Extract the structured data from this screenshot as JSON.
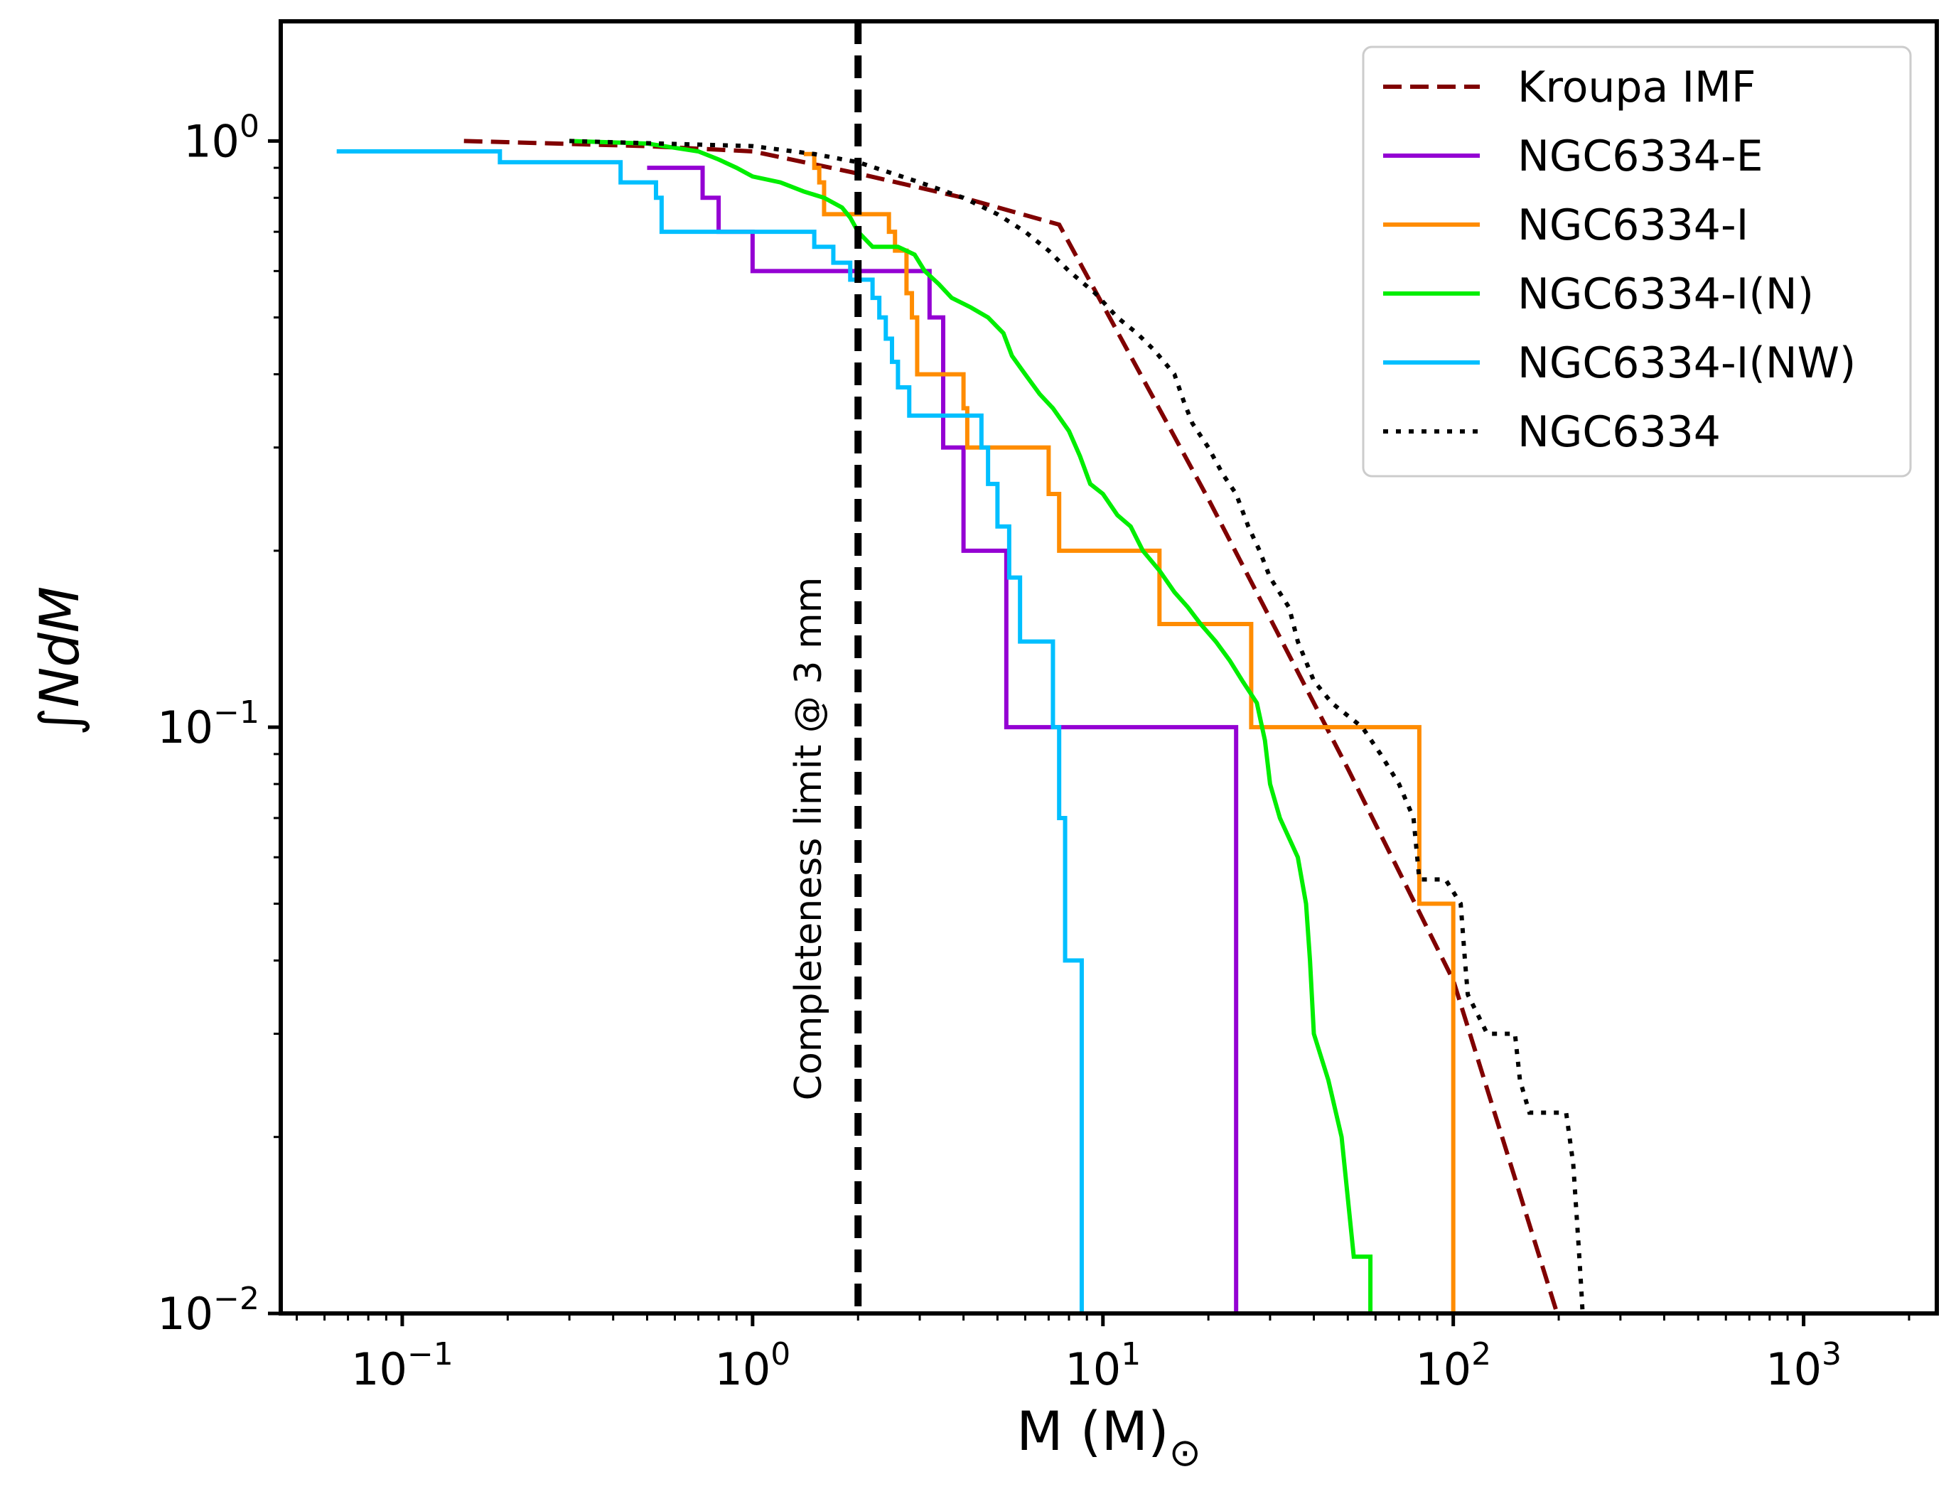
{
  "chart_data": {
    "type": "line",
    "title": "",
    "xlabel": "M (M)",
    "xlabel_subscript": "⊙",
    "ylabel": "∫NdM",
    "xscale": "log",
    "yscale": "log",
    "xlim": [
      0.045,
      2400
    ],
    "ylim": [
      0.01,
      1.6
    ],
    "x_ticks": [
      {
        "value": 0.1,
        "base": "10",
        "exp": "−1"
      },
      {
        "value": 1,
        "base": "10",
        "exp": "0"
      },
      {
        "value": 10,
        "base": "10",
        "exp": "1"
      },
      {
        "value": 100,
        "base": "10",
        "exp": "2"
      },
      {
        "value": 1000,
        "base": "10",
        "exp": "3"
      }
    ],
    "y_ticks": [
      {
        "value": 1,
        "base": "10",
        "exp": "0"
      },
      {
        "value": 0.1,
        "base": "10",
        "exp": "−1"
      },
      {
        "value": 0.01,
        "base": "10",
        "exp": "−2"
      }
    ],
    "grid": false,
    "legend_position": "top-right",
    "completeness_line": {
      "x": 2.0,
      "label": "Completeness limit @ 3 mm",
      "color": "#000000"
    },
    "series": [
      {
        "name": "Kroupa IMF",
        "color": "#800000",
        "style": "dashed",
        "step": false,
        "points": [
          [
            0.15,
            1.0
          ],
          [
            0.5,
            0.98
          ],
          [
            1.0,
            0.96
          ],
          [
            2.0,
            0.88
          ],
          [
            4.0,
            0.8
          ],
          [
            7.5,
            0.72
          ],
          [
            20.0,
            0.245
          ],
          [
            50.0,
            0.085
          ],
          [
            100.0,
            0.037
          ],
          [
            200.0,
            0.0098
          ]
        ]
      },
      {
        "name": "NGC6334-E",
        "color": "#9400d3",
        "style": "solid",
        "step": true,
        "points": [
          [
            0.5,
            0.9
          ],
          [
            0.72,
            0.9
          ],
          [
            0.72,
            0.8
          ],
          [
            0.8,
            0.8
          ],
          [
            0.8,
            0.7
          ],
          [
            1.0,
            0.7
          ],
          [
            1.0,
            0.6
          ],
          [
            3.2,
            0.6
          ],
          [
            3.2,
            0.5
          ],
          [
            3.5,
            0.5
          ],
          [
            3.5,
            0.4
          ],
          [
            3.5,
            0.3
          ],
          [
            4.0,
            0.3
          ],
          [
            4.0,
            0.2
          ],
          [
            5.3,
            0.2
          ],
          [
            5.3,
            0.1
          ],
          [
            24.0,
            0.1
          ],
          [
            24.0,
            0.01
          ]
        ]
      },
      {
        "name": "NGC6334-I",
        "color": "#ff8c00",
        "style": "solid",
        "step": true,
        "points": [
          [
            1.4,
            0.95
          ],
          [
            1.5,
            0.95
          ],
          [
            1.5,
            0.9
          ],
          [
            1.55,
            0.9
          ],
          [
            1.55,
            0.85
          ],
          [
            1.6,
            0.85
          ],
          [
            1.6,
            0.75
          ],
          [
            2.45,
            0.75
          ],
          [
            2.45,
            0.7
          ],
          [
            2.55,
            0.7
          ],
          [
            2.55,
            0.65
          ],
          [
            2.75,
            0.65
          ],
          [
            2.75,
            0.55
          ],
          [
            2.85,
            0.55
          ],
          [
            2.85,
            0.5
          ],
          [
            2.95,
            0.5
          ],
          [
            2.95,
            0.4
          ],
          [
            4.0,
            0.4
          ],
          [
            4.0,
            0.35
          ],
          [
            4.1,
            0.35
          ],
          [
            4.1,
            0.3
          ],
          [
            7.0,
            0.3
          ],
          [
            7.0,
            0.25
          ],
          [
            7.5,
            0.25
          ],
          [
            7.5,
            0.2
          ],
          [
            14.5,
            0.2
          ],
          [
            14.5,
            0.15
          ],
          [
            26.5,
            0.15
          ],
          [
            26.5,
            0.1
          ],
          [
            80.0,
            0.1
          ],
          [
            80.0,
            0.05
          ],
          [
            100.0,
            0.05
          ],
          [
            100.0,
            0.01
          ]
        ]
      },
      {
        "name": "NGC6334-I(N)",
        "color": "#00ee00",
        "style": "solid",
        "step": true,
        "points": [
          [
            0.3,
            1.0
          ],
          [
            0.5,
            0.99
          ],
          [
            0.7,
            0.96
          ],
          [
            0.8,
            0.93
          ],
          [
            0.9,
            0.9
          ],
          [
            1.0,
            0.87
          ],
          [
            1.2,
            0.85
          ],
          [
            1.4,
            0.82
          ],
          [
            1.6,
            0.8
          ],
          [
            1.8,
            0.77
          ],
          [
            1.9,
            0.74
          ],
          [
            2.0,
            0.7
          ],
          [
            2.2,
            0.66
          ],
          [
            2.6,
            0.66
          ],
          [
            2.9,
            0.64
          ],
          [
            3.1,
            0.6
          ],
          [
            3.4,
            0.57
          ],
          [
            3.7,
            0.54
          ],
          [
            4.2,
            0.52
          ],
          [
            4.7,
            0.5
          ],
          [
            5.2,
            0.47
          ],
          [
            5.5,
            0.43
          ],
          [
            6.0,
            0.4
          ],
          [
            6.6,
            0.37
          ],
          [
            7.2,
            0.35
          ],
          [
            8.0,
            0.32
          ],
          [
            8.6,
            0.29
          ],
          [
            9.2,
            0.26
          ],
          [
            10.0,
            0.25
          ],
          [
            11.0,
            0.23
          ],
          [
            12.0,
            0.22
          ],
          [
            13.0,
            0.2
          ],
          [
            14.5,
            0.185
          ],
          [
            16.0,
            0.17
          ],
          [
            17.5,
            0.16
          ],
          [
            19.0,
            0.15
          ],
          [
            21.0,
            0.14
          ],
          [
            23.0,
            0.13
          ],
          [
            25.0,
            0.12
          ],
          [
            27.5,
            0.11
          ],
          [
            29.0,
            0.095
          ],
          [
            30.0,
            0.08
          ],
          [
            32.0,
            0.07
          ],
          [
            36.0,
            0.06
          ],
          [
            38.0,
            0.05
          ],
          [
            39.0,
            0.04
          ],
          [
            40.0,
            0.03
          ],
          [
            44.0,
            0.025
          ],
          [
            48.0,
            0.02
          ],
          [
            52.0,
            0.0125
          ],
          [
            58.0,
            0.0125
          ],
          [
            58.0,
            0.01
          ]
        ]
      },
      {
        "name": "NGC6334-I(NW)",
        "color": "#00bfff",
        "style": "solid",
        "step": true,
        "points": [
          [
            0.065,
            0.96
          ],
          [
            0.19,
            0.96
          ],
          [
            0.19,
            0.92
          ],
          [
            0.42,
            0.92
          ],
          [
            0.42,
            0.85
          ],
          [
            0.53,
            0.85
          ],
          [
            0.53,
            0.8
          ],
          [
            0.55,
            0.8
          ],
          [
            0.55,
            0.7
          ],
          [
            1.0,
            0.7
          ],
          [
            1.0,
            0.7
          ],
          [
            1.5,
            0.7
          ],
          [
            1.5,
            0.66
          ],
          [
            1.7,
            0.66
          ],
          [
            1.7,
            0.62
          ],
          [
            1.9,
            0.62
          ],
          [
            1.9,
            0.58
          ],
          [
            2.2,
            0.58
          ],
          [
            2.2,
            0.54
          ],
          [
            2.3,
            0.54
          ],
          [
            2.3,
            0.5
          ],
          [
            2.4,
            0.5
          ],
          [
            2.4,
            0.46
          ],
          [
            2.5,
            0.46
          ],
          [
            2.5,
            0.42
          ],
          [
            2.6,
            0.42
          ],
          [
            2.6,
            0.38
          ],
          [
            2.8,
            0.38
          ],
          [
            2.8,
            0.34
          ],
          [
            4.5,
            0.34
          ],
          [
            4.5,
            0.3
          ],
          [
            4.7,
            0.3
          ],
          [
            4.7,
            0.26
          ],
          [
            5.0,
            0.26
          ],
          [
            5.0,
            0.22
          ],
          [
            5.4,
            0.22
          ],
          [
            5.4,
            0.18
          ],
          [
            5.8,
            0.18
          ],
          [
            5.8,
            0.14
          ],
          [
            7.2,
            0.14
          ],
          [
            7.2,
            0.1
          ],
          [
            7.5,
            0.1
          ],
          [
            7.5,
            0.07
          ],
          [
            7.8,
            0.07
          ],
          [
            7.8,
            0.04
          ],
          [
            8.7,
            0.04
          ],
          [
            8.7,
            0.01
          ]
        ]
      },
      {
        "name": "NGC6334",
        "color": "#000000",
        "style": "dotted",
        "step": true,
        "points": [
          [
            0.3,
            1.0
          ],
          [
            1.0,
            0.98
          ],
          [
            1.5,
            0.95
          ],
          [
            2.0,
            0.92
          ],
          [
            3.0,
            0.85
          ],
          [
            4.0,
            0.8
          ],
          [
            5.0,
            0.75
          ],
          [
            6.0,
            0.7
          ],
          [
            7.0,
            0.65
          ],
          [
            8.0,
            0.6
          ],
          [
            9.5,
            0.55
          ],
          [
            11.0,
            0.5
          ],
          [
            12.5,
            0.47
          ],
          [
            14.0,
            0.44
          ],
          [
            16.0,
            0.4
          ],
          [
            17.0,
            0.36
          ],
          [
            18.0,
            0.33
          ],
          [
            20.0,
            0.3
          ],
          [
            22.0,
            0.27
          ],
          [
            24.0,
            0.25
          ],
          [
            26.0,
            0.22
          ],
          [
            28.0,
            0.2
          ],
          [
            30.0,
            0.18
          ],
          [
            34.0,
            0.16
          ],
          [
            36.0,
            0.14
          ],
          [
            40.0,
            0.12
          ],
          [
            45.0,
            0.11
          ],
          [
            55.0,
            0.1
          ],
          [
            62.0,
            0.09
          ],
          [
            70.0,
            0.08
          ],
          [
            77.0,
            0.07
          ],
          [
            80.0,
            0.055
          ],
          [
            95.0,
            0.055
          ],
          [
            105.0,
            0.05
          ],
          [
            108.0,
            0.04
          ],
          [
            110.0,
            0.035
          ],
          [
            125.0,
            0.03
          ],
          [
            150.0,
            0.03
          ],
          [
            155.0,
            0.025
          ],
          [
            165.0,
            0.022
          ],
          [
            210.0,
            0.022
          ],
          [
            220.0,
            0.018
          ],
          [
            228.0,
            0.013
          ],
          [
            232.0,
            0.011
          ],
          [
            234.0,
            0.01
          ]
        ]
      }
    ]
  }
}
